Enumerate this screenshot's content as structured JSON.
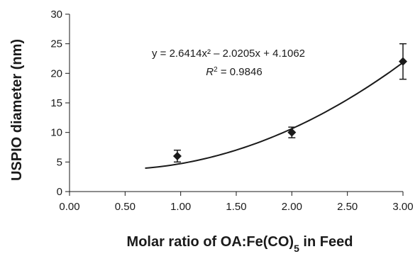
{
  "chart_data": {
    "type": "scatter",
    "xlabel": "Molar ratio of OA:Fe(CO)5 in Feed",
    "xlabel_parts": {
      "main": "Molar ratio of OA:Fe(CO)",
      "sub": "5",
      "tail": " in Feed"
    },
    "ylabel": "USPIO diameter (nm)",
    "xlim": [
      0,
      3
    ],
    "ylim": [
      0,
      30
    ],
    "x_ticks": [
      "0.00",
      "0.50",
      "1.00",
      "1.50",
      "2.00",
      "2.50",
      "3.00"
    ],
    "y_ticks": [
      "0",
      "5",
      "10",
      "15",
      "20",
      "25",
      "30"
    ],
    "grid": false,
    "series": [
      {
        "marker": "diamond",
        "points": [
          {
            "x": 0.97,
            "y": 6.0,
            "err": 1.0
          },
          {
            "x": 2.0,
            "y": 10.0,
            "err": 0.9
          },
          {
            "x": 3.0,
            "y": 22.0,
            "err": 3.0
          }
        ]
      }
    ],
    "trendline": {
      "type": "polynomial",
      "coefficients": [
        2.6414,
        -2.0205,
        4.1062
      ],
      "x_range": [
        0.68,
        3.0
      ]
    },
    "annotation": {
      "equation": "y = 2.6414x² – 2.0205x + 4.1062",
      "r2_label": "R",
      "r2_sup": "2",
      "r2_value": " = 0.9846"
    },
    "colors": {
      "marker": "#1a1a1a",
      "line": "#1a1a1a"
    }
  }
}
